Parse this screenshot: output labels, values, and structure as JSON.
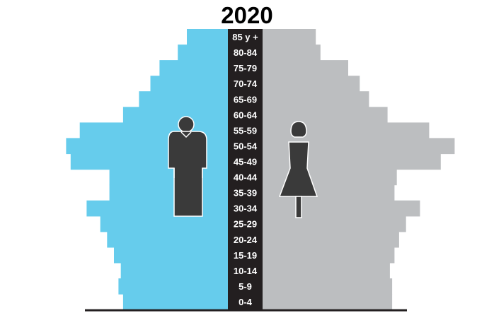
{
  "chart_data": {
    "type": "bar",
    "title": "2020",
    "orientation": "population-pyramid",
    "categories": [
      "85 y +",
      "80-84",
      "75-79",
      "70-74",
      "65-69",
      "60-64",
      "55-59",
      "50-54",
      "45-49",
      "40-44",
      "35-39",
      "30-34",
      "25-29",
      "20-24",
      "15-19",
      "10-14",
      "5-9",
      "0-4"
    ],
    "series": [
      {
        "color": "#66ccec",
        "icon": "male-icon",
        "values": [
          0.18,
          0.22,
          0.3,
          0.34,
          0.39,
          0.46,
          0.65,
          0.71,
          0.69,
          0.52,
          0.52,
          0.62,
          0.56,
          0.53,
          0.5,
          0.47,
          0.48,
          0.46
        ]
      },
      {
        "color": "#bcbec0",
        "icon": "female-icon",
        "values": [
          0.23,
          0.25,
          0.37,
          0.42,
          0.46,
          0.54,
          0.72,
          0.83,
          0.77,
          0.58,
          0.57,
          0.68,
          0.62,
          0.59,
          0.57,
          0.55,
          0.56,
          0.56
        ]
      }
    ],
    "xlim": [
      0,
      1
    ],
    "center_band_color": "#231f20",
    "label_color": "#ffffff"
  }
}
